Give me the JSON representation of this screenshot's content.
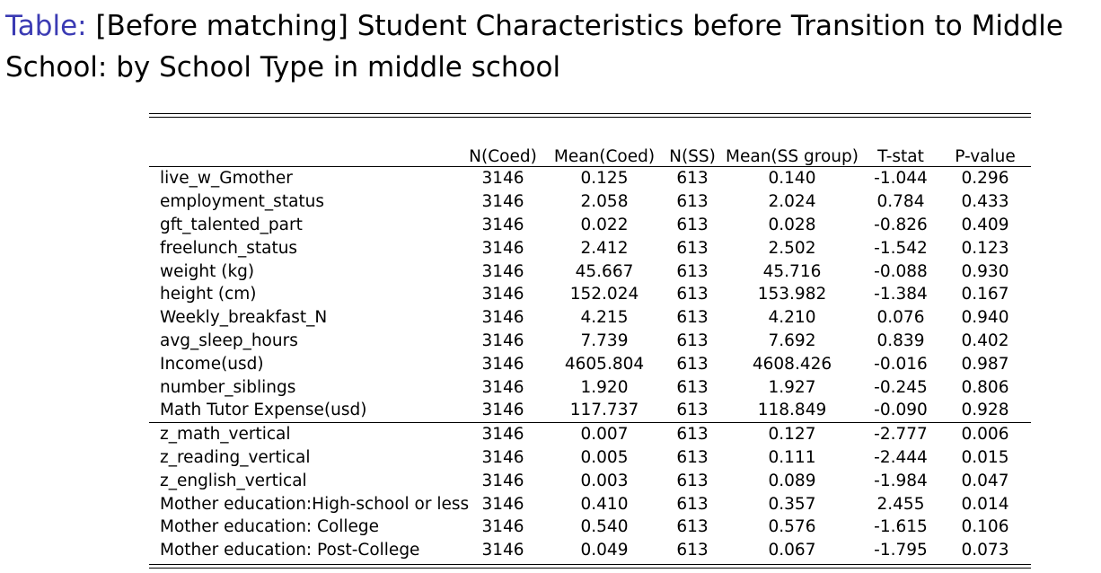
{
  "caption": {
    "label": "Table:",
    "text": " [Before matching] Student Characteristics before Transition to Middle School: by School Type in middle school"
  },
  "colors": {
    "caption_label": "#3b3bb3",
    "text": "#000000"
  },
  "table": {
    "headers": [
      "",
      "N(Coed)",
      "Mean(Coed)",
      "N(SS)",
      "Mean(SS group)",
      "T-stat",
      "P-value"
    ],
    "rows": [
      [
        "live_w_Gmother",
        "3146",
        "0.125",
        "613",
        "0.140",
        "-1.044",
        "0.296"
      ],
      [
        "employment_status",
        "3146",
        "2.058",
        "613",
        "2.024",
        "0.784",
        "0.433"
      ],
      [
        "gft_talented_part",
        "3146",
        "0.022",
        "613",
        "0.028",
        "-0.826",
        "0.409"
      ],
      [
        "freelunch_status",
        "3146",
        "2.412",
        "613",
        "2.502",
        "-1.542",
        "0.123"
      ],
      [
        "weight (kg)",
        "3146",
        "45.667",
        "613",
        "45.716",
        "-0.088",
        "0.930"
      ],
      [
        "height (cm)",
        "3146",
        "152.024",
        "613",
        "153.982",
        "-1.384",
        "0.167"
      ],
      [
        "Weekly_breakfast_N",
        "3146",
        "4.215",
        "613",
        "4.210",
        "0.076",
        "0.940"
      ],
      [
        "avg_sleep_hours",
        "3146",
        "7.739",
        "613",
        "7.692",
        "0.839",
        "0.402"
      ],
      [
        "Income(usd)",
        "3146",
        "4605.804",
        "613",
        "4608.426",
        "-0.016",
        "0.987"
      ],
      [
        "number_siblings",
        "3146",
        "1.920",
        "613",
        "1.927",
        "-0.245",
        "0.806"
      ],
      [
        "Math Tutor Expense(usd)",
        "3146",
        "117.737",
        "613",
        "118.849",
        "-0.090",
        "0.928"
      ],
      [
        "z_math_vertical",
        "3146",
        "0.007",
        "613",
        "0.127",
        "-2.777",
        "0.006"
      ],
      [
        "z_reading_vertical",
        "3146",
        "0.005",
        "613",
        "0.111",
        "-2.444",
        "0.015"
      ],
      [
        "z_english_vertical",
        "3146",
        "0.003",
        "613",
        "0.089",
        "-1.984",
        "0.047"
      ],
      [
        "Mother education:High-school or less",
        "3146",
        "0.410",
        "613",
        "0.357",
        "2.455",
        "0.014"
      ],
      [
        "Mother education: College",
        "3146",
        "0.540",
        "613",
        "0.576",
        "-1.615",
        "0.106"
      ],
      [
        "Mother education: Post-College",
        "3146",
        "0.049",
        "613",
        "0.067",
        "-1.795",
        "0.073"
      ]
    ]
  }
}
